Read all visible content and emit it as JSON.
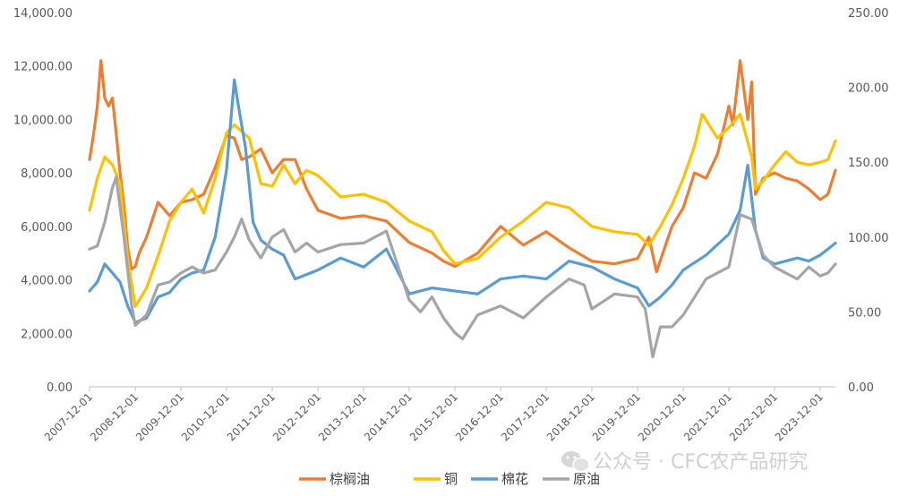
{
  "chart_data": {
    "type": "line",
    "y_left": {
      "ylim": [
        0,
        14000
      ],
      "ticks": [
        "0.00",
        "2,000.00",
        "4,000.00",
        "6,000.00",
        "8,000.00",
        "10,000.00",
        "12,000.00",
        "14,000.00"
      ]
    },
    "y_right": {
      "ylim": [
        0,
        250
      ],
      "ticks": [
        "0.00",
        "50.00",
        "100.00",
        "150.00",
        "200.00",
        "250.00"
      ]
    },
    "x_range": [
      "2007-12-01",
      "2024-04-01"
    ],
    "x_ticks": [
      "2007-12-01",
      "2008-12-01",
      "2009-12-01",
      "2010-12-01",
      "2011-12-01",
      "2012-12-01",
      "2013-12-01",
      "2014-12-01",
      "2015-12-01",
      "2016-12-01",
      "2017-12-01",
      "2018-12-01",
      "2019-12-01",
      "2020-12-01",
      "2021-12-01",
      "2022-12-01",
      "2023-12-01"
    ],
    "series": [
      {
        "name": "棕榈油",
        "axis": "left",
        "color": "#ED7D31",
        "x": [
          "2007-12-01",
          "2008-01-01",
          "2008-02-01",
          "2008-03-01",
          "2008-04-01",
          "2008-05-01",
          "2008-06-01",
          "2008-07-01",
          "2008-08-01",
          "2008-09-01",
          "2008-10-01",
          "2008-11-01",
          "2008-12-01",
          "2009-01-01",
          "2009-03-01",
          "2009-06-01",
          "2009-09-01",
          "2009-12-01",
          "2010-03-01",
          "2010-06-01",
          "2010-09-01",
          "2010-12-01",
          "2011-02-01",
          "2011-04-01",
          "2011-06-01",
          "2011-09-01",
          "2011-12-01",
          "2012-03-01",
          "2012-06-01",
          "2012-09-01",
          "2012-12-01",
          "2013-06-01",
          "2013-12-01",
          "2014-06-01",
          "2014-12-01",
          "2015-06-01",
          "2015-09-01",
          "2015-12-01",
          "2016-06-01",
          "2016-12-01",
          "2017-06-01",
          "2017-12-01",
          "2018-06-01",
          "2018-12-01",
          "2019-06-01",
          "2019-12-01",
          "2020-03-01",
          "2020-05-01",
          "2020-09-01",
          "2020-12-01",
          "2021-03-01",
          "2021-06-01",
          "2021-09-01",
          "2021-12-01",
          "2022-01-01",
          "2022-03-01",
          "2022-05-01",
          "2022-06-01",
          "2022-07-01",
          "2022-09-01",
          "2022-12-01",
          "2023-03-01",
          "2023-06-01",
          "2023-09-01",
          "2023-12-01",
          "2024-02-01",
          "2024-04-01"
        ],
        "values": [
          8500,
          9400,
          10500,
          12200,
          10800,
          10500,
          10800,
          9500,
          8000,
          6800,
          5200,
          4400,
          4500,
          5000,
          5600,
          6900,
          6400,
          6900,
          7000,
          7200,
          8200,
          9400,
          9300,
          8500,
          8600,
          8900,
          8000,
          8500,
          8500,
          7400,
          6600,
          6300,
          6400,
          6200,
          5400,
          5000,
          4700,
          4500,
          5000,
          6000,
          5300,
          5800,
          5200,
          4700,
          4600,
          4800,
          5600,
          4300,
          6000,
          6700,
          8000,
          7800,
          8700,
          10500,
          9800,
          12200,
          10000,
          11400,
          7200,
          7800,
          8000,
          7800,
          7700,
          7400,
          7000,
          7200,
          8100
        ]
      },
      {
        "name": "铜",
        "axis": "left",
        "color": "#FFC000",
        "x": [
          "2007-12-01",
          "2008-02-01",
          "2008-04-01",
          "2008-06-01",
          "2008-08-01",
          "2008-10-01",
          "2008-12-01",
          "2009-03-01",
          "2009-06-01",
          "2009-09-01",
          "2009-12-01",
          "2010-03-01",
          "2010-06-01",
          "2010-09-01",
          "2010-12-01",
          "2011-02-01",
          "2011-06-01",
          "2011-09-01",
          "2011-12-01",
          "2012-03-01",
          "2012-06-01",
          "2012-09-01",
          "2012-12-01",
          "2013-06-01",
          "2013-12-01",
          "2014-06-01",
          "2014-12-01",
          "2015-06-01",
          "2015-09-01",
          "2015-12-01",
          "2016-06-01",
          "2016-12-01",
          "2017-06-01",
          "2017-12-01",
          "2018-06-01",
          "2018-12-01",
          "2019-06-01",
          "2019-12-01",
          "2020-03-01",
          "2020-06-01",
          "2020-09-01",
          "2020-12-01",
          "2021-03-01",
          "2021-05-01",
          "2021-09-01",
          "2021-12-01",
          "2022-03-01",
          "2022-06-01",
          "2022-07-01",
          "2022-09-01",
          "2022-12-01",
          "2023-03-01",
          "2023-06-01",
          "2023-09-01",
          "2023-12-01",
          "2024-02-01",
          "2024-04-01"
        ],
        "values": [
          6600,
          7800,
          8600,
          8300,
          7600,
          4800,
          3000,
          3700,
          4900,
          6200,
          6900,
          7400,
          6500,
          7800,
          9500,
          9800,
          9300,
          7600,
          7500,
          8300,
          7600,
          8100,
          7900,
          7100,
          7200,
          6900,
          6200,
          5800,
          5100,
          4600,
          4800,
          5600,
          6200,
          6900,
          6700,
          6000,
          5800,
          5700,
          5300,
          6000,
          6800,
          7800,
          9000,
          10200,
          9300,
          9700,
          10200,
          8600,
          7400,
          7700,
          8300,
          8800,
          8400,
          8300,
          8400,
          8500,
          9200
        ]
      },
      {
        "name": "棉花",
        "axis": "right",
        "color": "#5B9BD5",
        "x": [
          "2007-12-01",
          "2008-02-01",
          "2008-04-01",
          "2008-06-01",
          "2008-08-01",
          "2008-10-01",
          "2008-12-01",
          "2009-03-01",
          "2009-06-01",
          "2009-09-01",
          "2009-12-01",
          "2010-03-01",
          "2010-06-01",
          "2010-09-01",
          "2010-12-01",
          "2011-02-01",
          "2011-03-01",
          "2011-05-01",
          "2011-07-01",
          "2011-09-01",
          "2011-12-01",
          "2012-03-01",
          "2012-06-01",
          "2012-09-01",
          "2012-12-01",
          "2013-06-01",
          "2013-12-01",
          "2014-06-01",
          "2014-12-01",
          "2015-06-01",
          "2015-12-01",
          "2016-06-01",
          "2016-12-01",
          "2017-06-01",
          "2017-12-01",
          "2018-06-01",
          "2018-12-01",
          "2019-06-01",
          "2019-12-01",
          "2020-03-01",
          "2020-06-01",
          "2020-09-01",
          "2020-12-01",
          "2021-06-01",
          "2021-12-01",
          "2022-03-01",
          "2022-05-01",
          "2022-07-01",
          "2022-09-01",
          "2022-12-01",
          "2023-06-01",
          "2023-09-01",
          "2023-12-01",
          "2024-02-01",
          "2024-04-01"
        ],
        "values": [
          64,
          70,
          82,
          76,
          70,
          54,
          43,
          46,
          60,
          63,
          72,
          76,
          78,
          100,
          145,
          205,
          190,
          160,
          110,
          98,
          92,
          88,
          72,
          75,
          78,
          86,
          80,
          92,
          62,
          66,
          64,
          62,
          72,
          74,
          72,
          84,
          80,
          72,
          66,
          54,
          60,
          68,
          78,
          88,
          102,
          118,
          148,
          105,
          86,
          82,
          86,
          84,
          88,
          92,
          96
        ]
      },
      {
        "name": "原油",
        "axis": "right",
        "color": "#A5A5A5",
        "x": [
          "2007-12-01",
          "2008-02-01",
          "2008-04-01",
          "2008-06-01",
          "2008-07-01",
          "2008-09-01",
          "2008-11-01",
          "2008-12-01",
          "2009-03-01",
          "2009-06-01",
          "2009-09-01",
          "2009-12-01",
          "2010-03-01",
          "2010-06-01",
          "2010-09-01",
          "2010-12-01",
          "2011-02-01",
          "2011-04-01",
          "2011-06-01",
          "2011-09-01",
          "2011-12-01",
          "2012-03-01",
          "2012-06-01",
          "2012-09-01",
          "2012-12-01",
          "2013-06-01",
          "2013-12-01",
          "2014-06-01",
          "2014-12-01",
          "2015-03-01",
          "2015-06-01",
          "2015-09-01",
          "2015-12-01",
          "2016-02-01",
          "2016-06-01",
          "2016-12-01",
          "2017-06-01",
          "2017-12-01",
          "2018-06-01",
          "2018-10-01",
          "2018-12-01",
          "2019-06-01",
          "2019-12-01",
          "2020-02-01",
          "2020-04-01",
          "2020-06-01",
          "2020-09-01",
          "2020-12-01",
          "2021-06-01",
          "2021-12-01",
          "2022-03-01",
          "2022-06-01",
          "2022-09-01",
          "2022-12-01",
          "2023-03-01",
          "2023-06-01",
          "2023-09-01",
          "2023-12-01",
          "2024-02-01",
          "2024-04-01"
        ],
        "values": [
          92,
          94,
          110,
          133,
          140,
          100,
          55,
          41,
          48,
          68,
          70,
          76,
          80,
          76,
          78,
          90,
          100,
          112,
          98,
          86,
          100,
          105,
          90,
          96,
          90,
          95,
          96,
          104,
          58,
          50,
          60,
          46,
          36,
          32,
          48,
          54,
          46,
          60,
          72,
          68,
          52,
          62,
          60,
          52,
          20,
          40,
          40,
          48,
          72,
          80,
          115,
          112,
          88,
          80,
          76,
          72,
          80,
          74,
          76,
          82
        ]
      }
    ]
  },
  "watermark": {
    "text": "公众号 · CFC农产品研究",
    "icon": "wechat-icon"
  }
}
